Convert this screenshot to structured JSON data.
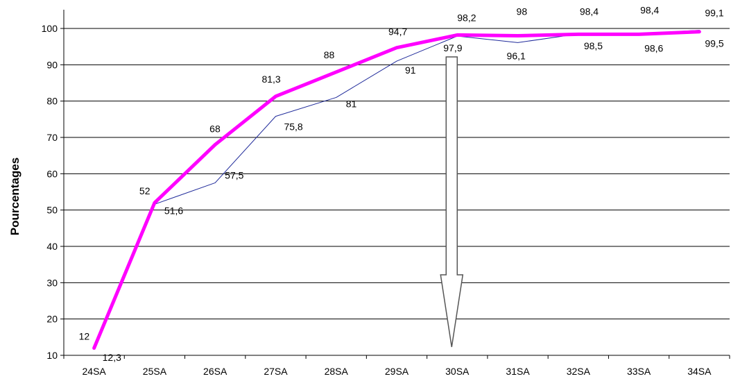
{
  "chart_data": {
    "type": "line",
    "title": "",
    "xlabel": "",
    "ylabel": "Pourcentages",
    "ylim": [
      10,
      100
    ],
    "yticks": [
      10,
      20,
      30,
      40,
      50,
      60,
      70,
      80,
      90,
      100
    ],
    "grid": "horizontal",
    "legend": "none",
    "categories": [
      "24SA",
      "25SA",
      "26SA",
      "27SA",
      "28SA",
      "29SA",
      "30SA",
      "31SA",
      "32SA",
      "33SA",
      "34SA"
    ],
    "series": [
      {
        "color": "#ff00ff",
        "emphasis": "thick",
        "values": [
          12,
          52,
          68,
          81.3,
          88,
          94.7,
          98.2,
          98,
          98.4,
          98.4,
          99.1
        ],
        "value_labels": [
          "12",
          "52",
          "68",
          "81,3",
          "88",
          "94,7",
          "98,2",
          "98",
          "98,4",
          "98,4",
          "99,1"
        ]
      },
      {
        "color": "#1f2a9a",
        "emphasis": "thin",
        "values": [
          12.3,
          51.6,
          57.5,
          75.8,
          81,
          91,
          97.9,
          96.1,
          98.5,
          98.6,
          99.5
        ],
        "value_labels": [
          "12,3",
          "51,6",
          "57,5",
          "75,8",
          "81",
          "91",
          "97,9",
          "96,1",
          "98,5",
          "98,6",
          "99,5"
        ]
      }
    ],
    "annotation": {
      "type": "arrow-down",
      "category": "30SA"
    }
  }
}
